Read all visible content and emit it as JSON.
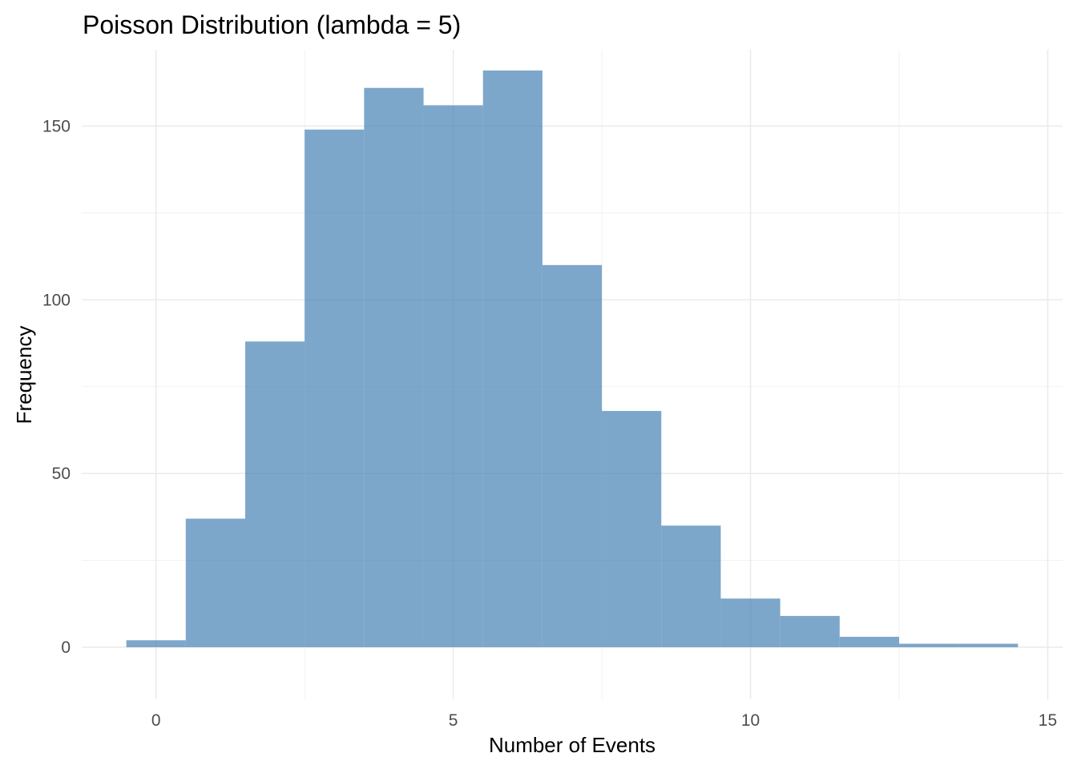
{
  "chart_data": {
    "type": "bar",
    "title": "Poisson Distribution (lambda = 5)",
    "xlabel": "Number of Events",
    "ylabel": "Frequency",
    "bin_width": 1,
    "bins": [
      {
        "center": 0,
        "count": 2
      },
      {
        "center": 1,
        "count": 37
      },
      {
        "center": 2,
        "count": 88
      },
      {
        "center": 3,
        "count": 149
      },
      {
        "center": 4,
        "count": 161
      },
      {
        "center": 5,
        "count": 156
      },
      {
        "center": 6,
        "count": 166
      },
      {
        "center": 7,
        "count": 110
      },
      {
        "center": 8,
        "count": 68
      },
      {
        "center": 9,
        "count": 35
      },
      {
        "center": 10,
        "count": 14
      },
      {
        "center": 11,
        "count": 9
      },
      {
        "center": 12,
        "count": 3
      },
      {
        "center": 13,
        "count": 1
      },
      {
        "center": 14,
        "count": 1
      }
    ],
    "xlim": [
      -1.25,
      15.25
    ],
    "ylim": [
      -15,
      172
    ],
    "x_ticks": [
      0,
      5,
      10,
      15
    ],
    "x_tick_labels": [
      "0",
      "5",
      "10",
      "15"
    ],
    "y_ticks": [
      0,
      50,
      100,
      150
    ],
    "y_tick_labels": [
      "0",
      "50",
      "100",
      "150"
    ],
    "grid": true,
    "bar_color": "#4682b4",
    "bar_opacity": 0.7
  }
}
